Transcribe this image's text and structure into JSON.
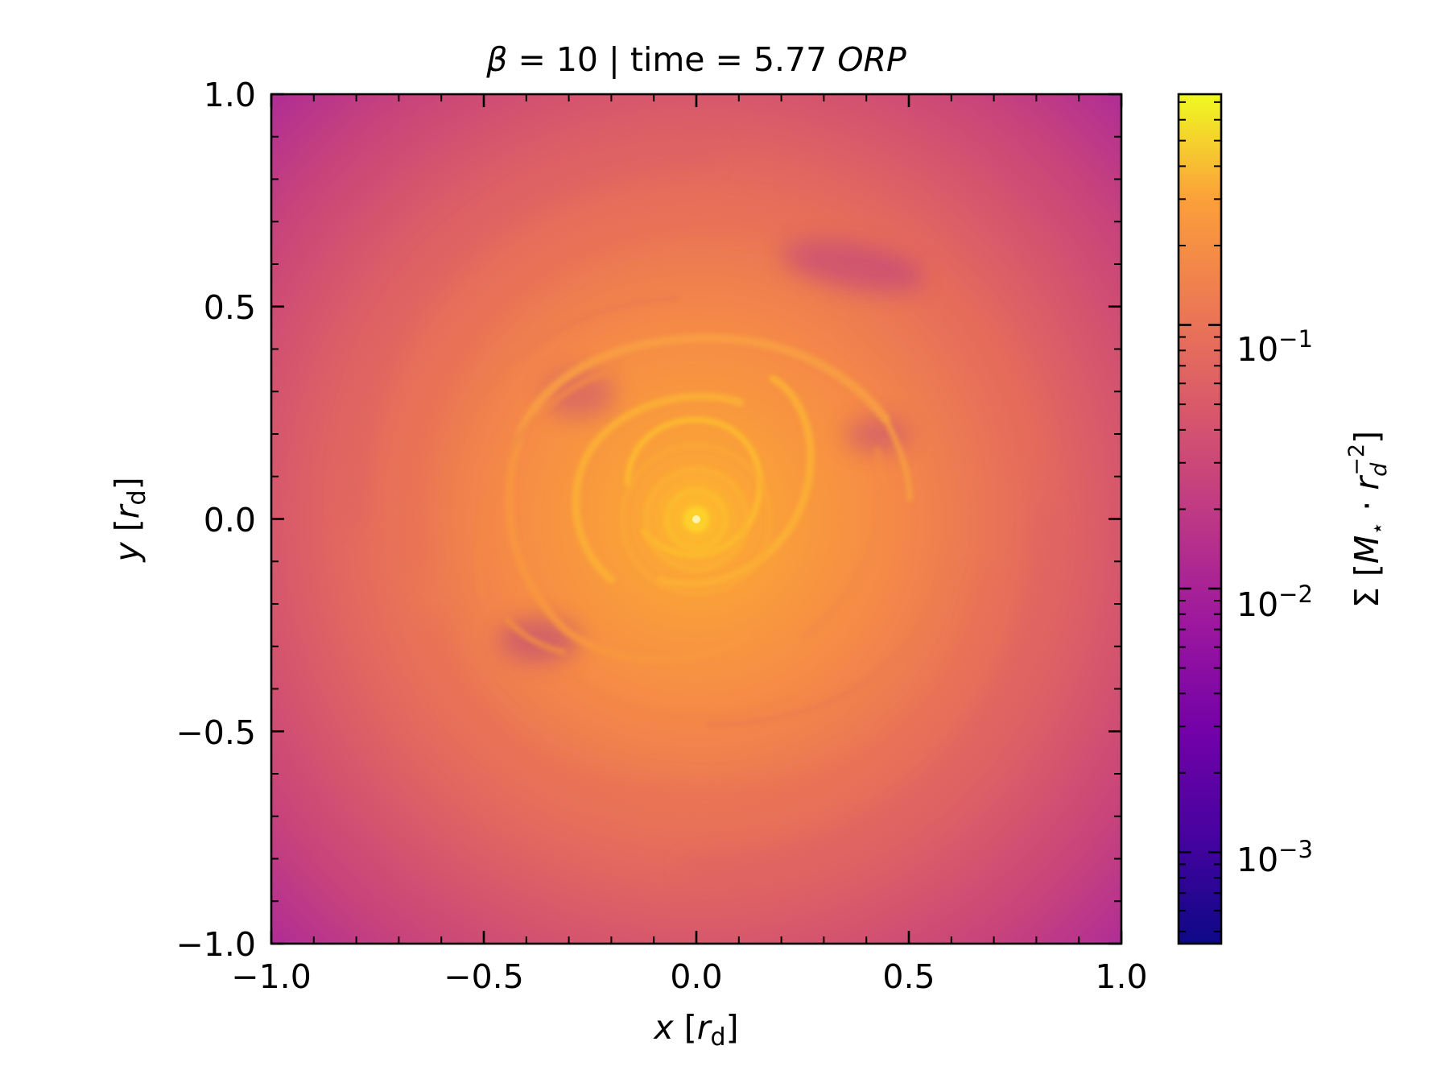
{
  "chart_data": {
    "type": "heatmap",
    "title": {
      "beta_symbol": "β",
      "beta_part": " = 10 | time = 5.77 ",
      "unit": "ORP"
    },
    "xlabel": {
      "var": "x",
      "unit_open": " [",
      "unit_var": "r",
      "unit_sub": "d",
      "unit_close": "]"
    },
    "ylabel": {
      "var": "y",
      "unit_open": " [",
      "unit_var": "r",
      "unit_sub": "d",
      "unit_close": "]"
    },
    "xlim": [
      -1.0,
      1.0
    ],
    "ylim": [
      -1.0,
      1.0
    ],
    "x_ticks": [
      -1.0,
      -0.5,
      0.0,
      0.5,
      1.0
    ],
    "x_tick_labels": [
      "−1.0",
      "−0.5",
      "0.0",
      "0.5",
      "1.0"
    ],
    "y_ticks": [
      1.0,
      0.5,
      0.0,
      -0.5,
      -1.0
    ],
    "y_tick_labels": [
      "1.0",
      "0.5",
      "0.0",
      "−0.5",
      "−1.0"
    ],
    "colorbar": {
      "scale": "log",
      "range": [
        0.00045,
        0.75
      ],
      "ticks": [
        0.1,
        0.01,
        0.001
      ],
      "tick_labels": [
        {
          "base": "10",
          "exp": "−1"
        },
        {
          "base": "10",
          "exp": "−2"
        },
        {
          "base": "10",
          "exp": "−3"
        }
      ],
      "label": {
        "symbol": "Σ",
        "open": " [",
        "mass": "M",
        "star": "⋆",
        "dot": " · ",
        "r": "r",
        "r_sub": "d",
        "r_exp": "−2",
        "close": "]"
      }
    },
    "colormap": "plasma",
    "colors": {
      "low": "#0d0887",
      "mid_low": "#7e03a8",
      "mid": "#cc4778",
      "mid_high": "#f89540",
      "high": "#f0f921"
    }
  }
}
